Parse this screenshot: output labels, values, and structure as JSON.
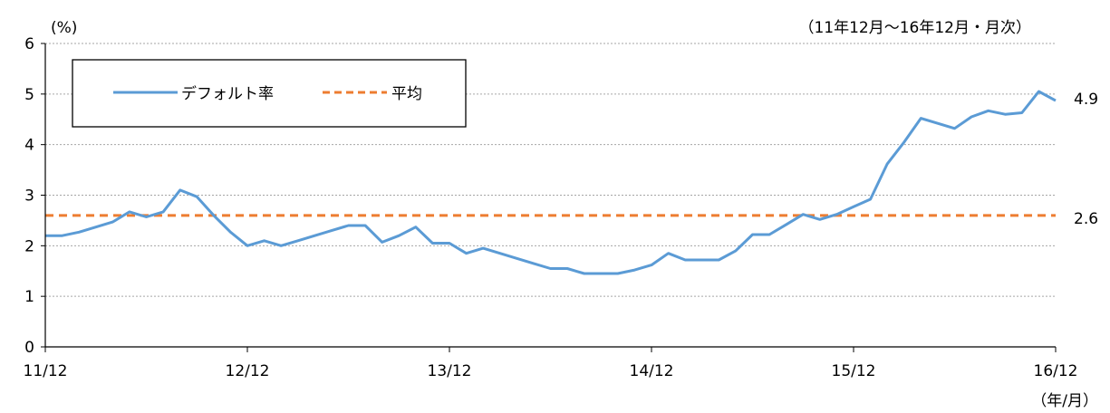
{
  "chart_data": {
    "type": "line",
    "unit_label": "(%)",
    "period_label": "（11年12月～16年12月・月次）",
    "xlabel": "（年/月）",
    "ylim": [
      0,
      6
    ],
    "y_ticks": [
      "0",
      "1",
      "2",
      "3",
      "4",
      "5",
      "6"
    ],
    "x_tick_labels": [
      "11/12",
      "12/12",
      "13/12",
      "14/12",
      "15/12",
      "16/12"
    ],
    "grid": "horizontal dotted",
    "legend_position": "top-left",
    "series": [
      {
        "name": "デフォルト率",
        "color": "#5B9BD5",
        "style": "solid",
        "values": [
          2.2,
          2.2,
          2.27,
          2.37,
          2.47,
          2.67,
          2.57,
          2.67,
          3.1,
          2.97,
          2.6,
          2.27,
          2.0,
          2.1,
          2.0,
          2.1,
          2.2,
          2.3,
          2.4,
          2.4,
          2.07,
          2.2,
          2.37,
          2.05,
          2.05,
          1.85,
          1.95,
          1.85,
          1.75,
          1.65,
          1.55,
          1.55,
          1.45,
          1.45,
          1.45,
          1.52,
          1.62,
          1.85,
          1.72,
          1.72,
          1.72,
          1.9,
          2.22,
          2.22,
          2.42,
          2.62,
          2.52,
          2.62,
          2.77,
          2.92,
          3.62,
          4.05,
          4.52,
          4.42,
          4.32,
          4.55,
          4.67,
          4.6,
          4.63,
          5.05,
          4.87
        ],
        "end_label": "4.9"
      },
      {
        "name": "平均",
        "color": "#ED7D31",
        "style": "dashed",
        "value": 2.6,
        "end_label": "2.6"
      }
    ]
  }
}
